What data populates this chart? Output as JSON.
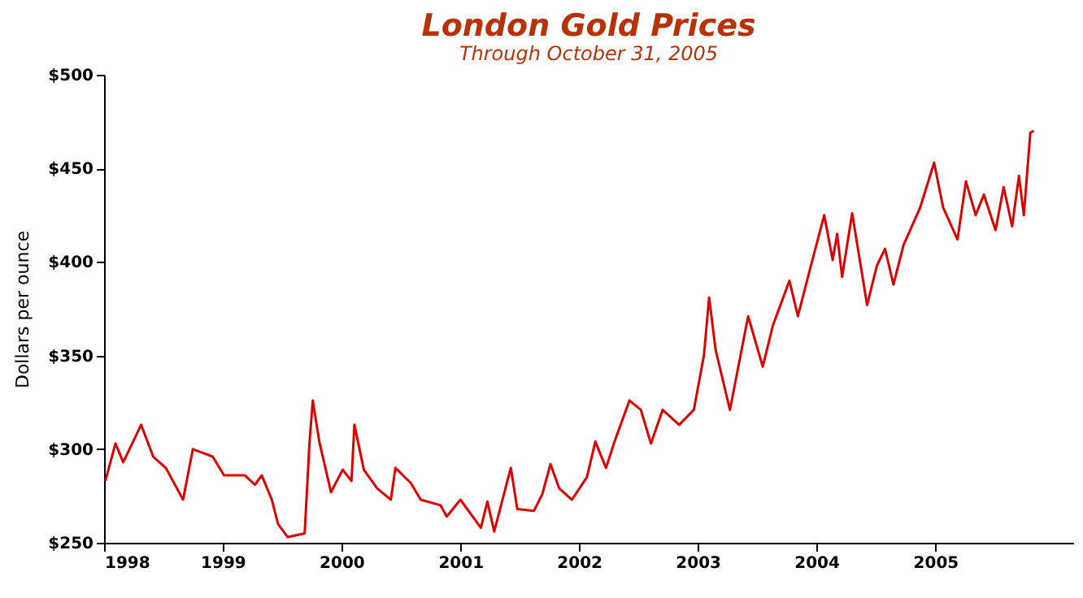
{
  "chart_data": {
    "type": "line",
    "title": "London Gold Prices",
    "subtitle": "Through October 31, 2005",
    "ylabel": "Dollars per ounce",
    "x": [
      "1998-01-05",
      "1998-02-05",
      "1998-03-01",
      "1998-04-25",
      "1998-06-01",
      "1998-07-10",
      "1998-09-01",
      "1998-10-01",
      "1998-12-01",
      "1999-01-05",
      "1999-03-10",
      "1999-04-10",
      "1999-05-01",
      "1999-06-01",
      "1999-06-20",
      "1999-07-20",
      "1999-09-10",
      "1999-09-25",
      "1999-10-05",
      "1999-10-25",
      "1999-11-30",
      "2000-01-05",
      "2000-02-01",
      "2000-02-10",
      "2000-03-10",
      "2000-04-20",
      "2000-06-01",
      "2000-06-15",
      "2000-08-01",
      "2000-09-01",
      "2000-11-01",
      "2000-11-20",
      "2001-01-01",
      "2001-03-05",
      "2001-03-25",
      "2001-04-15",
      "2001-06-05",
      "2001-06-25",
      "2001-08-15",
      "2001-09-10",
      "2001-10-05",
      "2001-11-01",
      "2001-12-10",
      "2002-01-25",
      "2002-02-20",
      "2002-03-25",
      "2002-04-20",
      "2002-06-05",
      "2002-07-10",
      "2002-08-10",
      "2002-09-15",
      "2002-11-05",
      "2002-12-20",
      "2003-01-20",
      "2003-02-05",
      "2003-02-25",
      "2003-04-10",
      "2003-06-05",
      "2003-07-20",
      "2003-08-20",
      "2003-10-10",
      "2003-11-05",
      "2003-12-15",
      "2004-01-25",
      "2004-02-20",
      "2004-03-05",
      "2004-03-20",
      "2004-04-20",
      "2004-06-05",
      "2004-07-05",
      "2004-07-30",
      "2004-08-25",
      "2004-09-25",
      "2004-11-15",
      "2004-12-28",
      "2005-01-25",
      "2005-03-10",
      "2005-04-05",
      "2005-05-05",
      "2005-05-30",
      "2005-07-05",
      "2005-07-30",
      "2005-08-25",
      "2005-09-15",
      "2005-09-30",
      "2005-10-20",
      "2005-10-31"
    ],
    "series": [
      {
        "color": "#dd0000",
        "values": [
          283,
          303,
          293,
          313,
          296,
          290,
          273,
          300,
          296,
          286,
          286,
          281,
          286,
          273,
          260,
          253,
          255,
          304,
          326,
          304,
          277,
          289,
          283,
          313,
          289,
          279,
          273,
          290,
          282,
          273,
          270,
          264,
          273,
          258,
          272,
          256,
          290,
          268,
          267,
          276,
          292,
          279,
          273,
          285,
          304,
          290,
          304,
          326,
          321,
          303,
          321,
          313,
          321,
          350,
          381,
          353,
          321,
          371,
          344,
          366,
          390,
          371,
          398,
          425,
          401,
          415,
          392,
          426,
          377,
          398,
          407,
          388,
          409,
          429,
          453,
          429,
          412,
          443,
          425,
          436,
          417,
          440,
          419,
          446,
          425,
          469,
          470
        ]
      }
    ],
    "xlim": [
      "1998-01-01",
      "2006-03-01"
    ],
    "xticks": [
      {
        "value": "1998-01-01",
        "label": "1998"
      },
      {
        "value": "1999-01-01",
        "label": "1999"
      },
      {
        "value": "2000-01-01",
        "label": "2000"
      },
      {
        "value": "2001-01-01",
        "label": "2001"
      },
      {
        "value": "2002-01-01",
        "label": "2002"
      },
      {
        "value": "2003-01-01",
        "label": "2003"
      },
      {
        "value": "2004-01-01",
        "label": "2004"
      },
      {
        "value": "2005-01-01",
        "label": "2005"
      }
    ],
    "ylim": [
      250,
      500
    ],
    "yticks": [
      {
        "value": 250,
        "label": "$250"
      },
      {
        "value": 300,
        "label": "$300"
      },
      {
        "value": 350,
        "label": "$350"
      },
      {
        "value": 400,
        "label": "$400"
      },
      {
        "value": 450,
        "label": "$450"
      },
      {
        "value": 500,
        "label": "$500"
      }
    ],
    "marker": "none",
    "line_style": "solid"
  }
}
